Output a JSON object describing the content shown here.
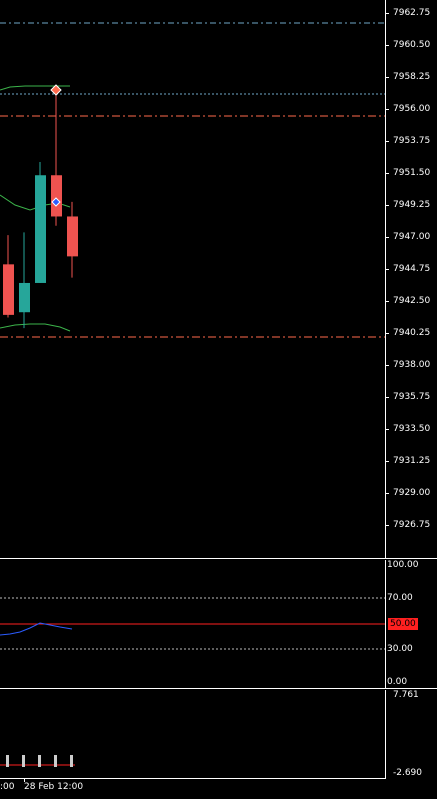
{
  "price_scale": {
    "ticks": [
      "7962.75",
      "7960.50",
      "7958.25",
      "7956.00",
      "7953.75",
      "7951.50",
      "7949.25",
      "7947.00",
      "7944.75",
      "7942.50",
      "7940.25",
      "7938.00",
      "7935.75",
      "7933.50",
      "7931.25",
      "7929.00",
      "7926.75"
    ]
  },
  "oscillator": {
    "ticks": [
      "100.00",
      "70.00",
      "30.00",
      "0.00"
    ],
    "current_value": "50.00"
  },
  "histogram": {
    "max_label": "7.761",
    "min_label": "-2.690"
  },
  "time_axis": {
    "labels": [
      ":00",
      "28 Feb 12:00"
    ]
  },
  "colors": {
    "bull": "#26a69a",
    "bear": "#ef5350",
    "level_line": "#ff6a4d",
    "ma": "#3cb44b",
    "osc_line": "#2b5cff",
    "osc_level": "#ff2020"
  },
  "chart_data": {
    "type": "candlestick",
    "ylim": [
      7925.0,
      7963.5
    ],
    "candles": [
      {
        "open": 7944.6,
        "high": 7946.8,
        "low": 7940.6,
        "close": 7940.8
      },
      {
        "open": 7941.0,
        "high": 7947.0,
        "low": 7939.8,
        "close": 7943.2
      },
      {
        "open": 7943.2,
        "high": 7952.3,
        "low": 7943.2,
        "close": 7951.3
      },
      {
        "open": 7951.3,
        "high": 7957.8,
        "low": 7947.5,
        "close": 7948.2
      },
      {
        "open": 7948.2,
        "high": 7949.3,
        "low": 7943.6,
        "close": 7945.2
      }
    ]
  }
}
